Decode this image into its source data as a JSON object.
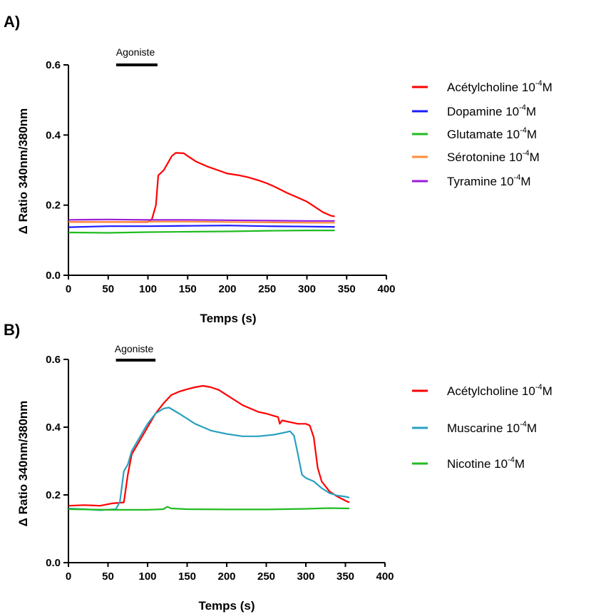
{
  "chart_data": [
    {
      "panel": "A)",
      "type": "line",
      "ylabel": "Δ Ratio 340nm/380nm",
      "xlabel": "Temps (s)",
      "xlim": [
        0,
        400
      ],
      "ylim": [
        0,
        0.6
      ],
      "xticks": [
        "0",
        "50",
        "100",
        "150",
        "200",
        "250",
        "300",
        "350",
        "400"
      ],
      "yticks": [
        "0.0",
        "0.2",
        "0.4",
        "0.6"
      ],
      "annotation": {
        "text": "Agoniste",
        "x_start": 60,
        "x_end": 112
      },
      "legend_position": "right",
      "series": [
        {
          "name": "Acétylcholine 10",
          "exp": "-4",
          "unit": "M",
          "color": "#ff0000",
          "points": [
            [
              0,
              0.152
            ],
            [
              100,
              0.152
            ],
            [
              105,
              0.16
            ],
            [
              110,
              0.2
            ],
            [
              113,
              0.285
            ],
            [
              120,
              0.3
            ],
            [
              125,
              0.32
            ],
            [
              130,
              0.34
            ],
            [
              135,
              0.349
            ],
            [
              145,
              0.348
            ],
            [
              150,
              0.34
            ],
            [
              160,
              0.325
            ],
            [
              175,
              0.31
            ],
            [
              190,
              0.298
            ],
            [
              200,
              0.29
            ],
            [
              215,
              0.285
            ],
            [
              225,
              0.28
            ],
            [
              240,
              0.27
            ],
            [
              250,
              0.262
            ],
            [
              260,
              0.252
            ],
            [
              275,
              0.235
            ],
            [
              290,
              0.22
            ],
            [
              300,
              0.21
            ],
            [
              310,
              0.195
            ],
            [
              320,
              0.18
            ],
            [
              330,
              0.17
            ],
            [
              335,
              0.168
            ]
          ]
        },
        {
          "name": "Dopamine 10",
          "exp": "-4",
          "unit": "M",
          "color": "#1a1aff",
          "points": [
            [
              0,
              0.137
            ],
            [
              50,
              0.14
            ],
            [
              100,
              0.14
            ],
            [
              150,
              0.141
            ],
            [
              200,
              0.142
            ],
            [
              250,
              0.14
            ],
            [
              300,
              0.139
            ],
            [
              335,
              0.138
            ]
          ]
        },
        {
          "name": "Glutamate 10",
          "exp": "-4",
          "unit": "M",
          "color": "#22bb22",
          "points": [
            [
              0,
              0.122
            ],
            [
              50,
              0.121
            ],
            [
              100,
              0.123
            ],
            [
              150,
              0.124
            ],
            [
              200,
              0.125
            ],
            [
              250,
              0.127
            ],
            [
              300,
              0.128
            ],
            [
              335,
              0.128
            ]
          ]
        },
        {
          "name": "Sérotonine 10",
          "exp": "-4",
          "unit": "M",
          "color": "#ff8c3a",
          "points": [
            [
              0,
              0.152
            ],
            [
              50,
              0.152
            ],
            [
              100,
              0.153
            ],
            [
              150,
              0.153
            ],
            [
              200,
              0.152
            ],
            [
              250,
              0.151
            ],
            [
              300,
              0.15
            ],
            [
              335,
              0.15
            ]
          ]
        },
        {
          "name": "Tyramine 10",
          "exp": "-4",
          "unit": "M",
          "color": "#9a1ad9",
          "points": [
            [
              0,
              0.158
            ],
            [
              50,
              0.159
            ],
            [
              100,
              0.158
            ],
            [
              150,
              0.158
            ],
            [
              200,
              0.157
            ],
            [
              250,
              0.156
            ],
            [
              300,
              0.155
            ],
            [
              335,
              0.155
            ]
          ]
        }
      ]
    },
    {
      "panel": "B)",
      "type": "line",
      "ylabel": "Δ Ratio 340nm/380nm",
      "xlabel": "Temps (s)",
      "xlim": [
        0,
        400
      ],
      "ylim": [
        0,
        0.6
      ],
      "xticks": [
        "0",
        "50",
        "100",
        "150",
        "200",
        "250",
        "300",
        "350",
        "400"
      ],
      "yticks": [
        "0.0",
        "0.2",
        "0.4",
        "0.6"
      ],
      "annotation": {
        "text": "Agoniste",
        "x_start": 60,
        "x_end": 110
      },
      "legend_position": "right",
      "series": [
        {
          "name": "Acétylcholine 10",
          "exp": "-4",
          "unit": "M",
          "color": "#ff0000",
          "points": [
            [
              0,
              0.168
            ],
            [
              20,
              0.17
            ],
            [
              40,
              0.168
            ],
            [
              55,
              0.175
            ],
            [
              70,
              0.178
            ],
            [
              75,
              0.26
            ],
            [
              80,
              0.32
            ],
            [
              90,
              0.36
            ],
            [
              100,
              0.4
            ],
            [
              110,
              0.44
            ],
            [
              120,
              0.47
            ],
            [
              130,
              0.495
            ],
            [
              140,
              0.505
            ],
            [
              150,
              0.512
            ],
            [
              160,
              0.518
            ],
            [
              170,
              0.522
            ],
            [
              180,
              0.518
            ],
            [
              190,
              0.51
            ],
            [
              200,
              0.495
            ],
            [
              210,
              0.48
            ],
            [
              220,
              0.465
            ],
            [
              230,
              0.455
            ],
            [
              240,
              0.445
            ],
            [
              250,
              0.44
            ],
            [
              260,
              0.433
            ],
            [
              265,
              0.43
            ],
            [
              267,
              0.41
            ],
            [
              270,
              0.42
            ],
            [
              280,
              0.415
            ],
            [
              290,
              0.41
            ],
            [
              300,
              0.41
            ],
            [
              305,
              0.405
            ],
            [
              310,
              0.37
            ],
            [
              315,
              0.28
            ],
            [
              320,
              0.24
            ],
            [
              330,
              0.21
            ],
            [
              340,
              0.195
            ],
            [
              350,
              0.183
            ],
            [
              355,
              0.178
            ]
          ]
        },
        {
          "name": "Muscarine 10",
          "exp": "-4",
          "unit": "M",
          "color": "#2ba0c0",
          "points": [
            [
              0,
              0.16
            ],
            [
              20,
              0.158
            ],
            [
              40,
              0.155
            ],
            [
              60,
              0.158
            ],
            [
              65,
              0.18
            ],
            [
              70,
              0.27
            ],
            [
              75,
              0.29
            ],
            [
              80,
              0.33
            ],
            [
              90,
              0.37
            ],
            [
              100,
              0.41
            ],
            [
              110,
              0.44
            ],
            [
              120,
              0.455
            ],
            [
              127,
              0.458
            ],
            [
              140,
              0.44
            ],
            [
              150,
              0.425
            ],
            [
              160,
              0.41
            ],
            [
              170,
              0.4
            ],
            [
              180,
              0.39
            ],
            [
              200,
              0.38
            ],
            [
              220,
              0.373
            ],
            [
              240,
              0.373
            ],
            [
              260,
              0.378
            ],
            [
              275,
              0.385
            ],
            [
              280,
              0.388
            ],
            [
              285,
              0.375
            ],
            [
              290,
              0.32
            ],
            [
              295,
              0.26
            ],
            [
              300,
              0.25
            ],
            [
              310,
              0.24
            ],
            [
              320,
              0.22
            ],
            [
              330,
              0.205
            ],
            [
              340,
              0.198
            ],
            [
              350,
              0.195
            ],
            [
              355,
              0.192
            ]
          ]
        },
        {
          "name": "Nicotine 10",
          "exp": "-4",
          "unit": "M",
          "color": "#22bb22",
          "points": [
            [
              0,
              0.158
            ],
            [
              50,
              0.156
            ],
            [
              100,
              0.156
            ],
            [
              120,
              0.158
            ],
            [
              125,
              0.165
            ],
            [
              130,
              0.16
            ],
            [
              150,
              0.158
            ],
            [
              200,
              0.157
            ],
            [
              250,
              0.157
            ],
            [
              300,
              0.159
            ],
            [
              330,
              0.161
            ],
            [
              355,
              0.16
            ]
          ]
        }
      ]
    }
  ]
}
